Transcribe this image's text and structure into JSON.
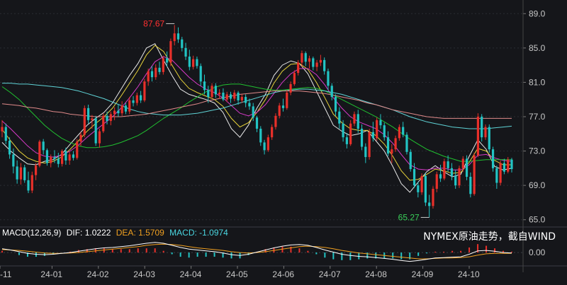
{
  "chart_data": {
    "type": "candlestick",
    "price_axis": {
      "ticks": [
        "89.0",
        "85.0",
        "81.0",
        "77.0",
        "73.0",
        "69.0",
        "65.0"
      ],
      "ylim": [
        64.4,
        89.6
      ]
    },
    "x_axis": {
      "labels": [
        "-11",
        "24-01",
        "24-02",
        "24-03",
        "24-04",
        "24-05",
        "24-06",
        "24-07",
        "24-08",
        "24-09",
        "24-10"
      ]
    },
    "annotations": {
      "high": "87.67",
      "low": "65.27"
    },
    "candles": [
      [
        75.3,
        76.6,
        74.6,
        75.8
      ],
      [
        75.8,
        76.2,
        73.8,
        74.2
      ],
      [
        74.2,
        74.6,
        72.1,
        72.6
      ],
      [
        72.6,
        73.3,
        70.4,
        71.2
      ],
      [
        71.2,
        71.9,
        69.2,
        69.7
      ],
      [
        69.7,
        71.6,
        69.1,
        71.1
      ],
      [
        71.1,
        71.4,
        69.3,
        69.6
      ],
      [
        69.6,
        70.6,
        68.1,
        68.4
      ],
      [
        68.4,
        70.6,
        68.1,
        70.2
      ],
      [
        70.2,
        71.6,
        69.6,
        71.3
      ],
      [
        71.3,
        74.3,
        71.1,
        74.1
      ],
      [
        74.1,
        74.4,
        72.6,
        73.1
      ],
      [
        73.1,
        73.3,
        71.3,
        71.6
      ],
      [
        71.6,
        72.6,
        71.1,
        72.3
      ],
      [
        72.3,
        73.1,
        71.6,
        72.1
      ],
      [
        72.1,
        72.8,
        71.1,
        71.5
      ],
      [
        71.5,
        73.2,
        71.2,
        73.0
      ],
      [
        73.0,
        73.4,
        71.4,
        71.9
      ],
      [
        71.9,
        72.9,
        71.4,
        72.6
      ],
      [
        72.6,
        73.0,
        71.9,
        72.2
      ],
      [
        72.2,
        74.4,
        72.0,
        74.1
      ],
      [
        74.1,
        75.2,
        73.6,
        74.9
      ],
      [
        74.9,
        78.3,
        74.6,
        78.0
      ],
      [
        78.0,
        78.4,
        76.2,
        76.6
      ],
      [
        76.6,
        77.2,
        75.6,
        76.8
      ],
      [
        76.8,
        77.1,
        73.6,
        73.9
      ],
      [
        73.9,
        75.6,
        73.4,
        75.3
      ],
      [
        75.3,
        77.4,
        75.1,
        77.1
      ],
      [
        77.1,
        77.6,
        76.1,
        76.5
      ],
      [
        76.5,
        77.6,
        76.0,
        77.3
      ],
      [
        77.3,
        78.1,
        76.6,
        77.7
      ],
      [
        77.7,
        78.4,
        77.0,
        77.4
      ],
      [
        77.4,
        78.8,
        77.1,
        78.3
      ],
      [
        78.3,
        78.6,
        77.3,
        77.6
      ],
      [
        77.6,
        79.3,
        77.3,
        78.9
      ],
      [
        78.9,
        79.4,
        78.2,
        78.6
      ],
      [
        78.6,
        79.8,
        78.3,
        79.5
      ],
      [
        79.5,
        80.0,
        78.6,
        78.9
      ],
      [
        78.9,
        81.4,
        78.7,
        81.1
      ],
      [
        81.1,
        82.6,
        80.6,
        82.3
      ],
      [
        82.3,
        82.9,
        81.1,
        81.6
      ],
      [
        81.6,
        83.1,
        81.3,
        82.7
      ],
      [
        82.7,
        83.4,
        81.9,
        82.2
      ],
      [
        82.2,
        84.1,
        81.9,
        83.8
      ],
      [
        83.8,
        84.6,
        82.8,
        83.3
      ],
      [
        83.3,
        86.1,
        82.9,
        85.8
      ],
      [
        85.8,
        87.67,
        85.3,
        86.7
      ],
      [
        86.7,
        87.4,
        85.6,
        86.0
      ],
      [
        86.0,
        86.3,
        84.6,
        85.0
      ],
      [
        85.0,
        85.6,
        83.6,
        84.0
      ],
      [
        84.0,
        84.8,
        82.4,
        82.8
      ],
      [
        82.8,
        84.1,
        82.5,
        83.7
      ],
      [
        83.7,
        84.0,
        82.6,
        82.9
      ],
      [
        82.9,
        83.2,
        80.6,
        81.1
      ],
      [
        81.1,
        81.9,
        79.6,
        80.1
      ],
      [
        80.1,
        80.6,
        78.6,
        79.3
      ],
      [
        79.3,
        80.9,
        79.1,
        80.6
      ],
      [
        80.6,
        80.9,
        79.2,
        79.6
      ],
      [
        79.6,
        80.2,
        79.1,
        79.8
      ],
      [
        79.8,
        80.3,
        78.8,
        79.0
      ],
      [
        79.0,
        79.9,
        78.7,
        79.6
      ],
      [
        79.6,
        79.9,
        78.6,
        79.1
      ],
      [
        79.1,
        80.1,
        78.8,
        79.8
      ],
      [
        79.8,
        80.0,
        78.4,
        78.9
      ],
      [
        78.9,
        79.6,
        78.6,
        79.3
      ],
      [
        79.3,
        79.6,
        78.1,
        78.6
      ],
      [
        78.6,
        79.1,
        77.8,
        78.2
      ],
      [
        78.2,
        78.6,
        76.5,
        76.9
      ],
      [
        76.9,
        77.1,
        75.2,
        75.6
      ],
      [
        75.6,
        75.9,
        73.6,
        74.0
      ],
      [
        74.0,
        74.3,
        72.6,
        73.1
      ],
      [
        73.1,
        74.9,
        72.9,
        74.6
      ],
      [
        74.6,
        76.1,
        74.3,
        75.8
      ],
      [
        75.8,
        77.4,
        75.5,
        77.1
      ],
      [
        77.1,
        78.6,
        76.8,
        78.3
      ],
      [
        78.3,
        79.1,
        77.6,
        78.0
      ],
      [
        78.0,
        80.1,
        77.8,
        79.8
      ],
      [
        79.8,
        81.1,
        79.5,
        80.8
      ],
      [
        80.8,
        82.4,
        80.6,
        82.1
      ],
      [
        82.1,
        83.6,
        81.8,
        83.3
      ],
      [
        83.3,
        84.7,
        82.8,
        84.4
      ],
      [
        84.4,
        84.6,
        82.9,
        83.4
      ],
      [
        83.4,
        84.1,
        82.6,
        83.8
      ],
      [
        83.8,
        84.0,
        82.4,
        82.8
      ],
      [
        82.8,
        83.6,
        82.3,
        83.3
      ],
      [
        83.3,
        84.2,
        82.9,
        83.6
      ],
      [
        83.6,
        83.9,
        81.9,
        82.3
      ],
      [
        82.3,
        82.6,
        80.1,
        80.6
      ],
      [
        80.6,
        80.9,
        78.9,
        79.3
      ],
      [
        79.3,
        79.6,
        77.1,
        77.6
      ],
      [
        77.6,
        78.1,
        75.6,
        76.2
      ],
      [
        76.2,
        76.6,
        74.1,
        74.6
      ],
      [
        74.6,
        75.1,
        73.3,
        73.8
      ],
      [
        73.8,
        76.6,
        73.6,
        76.2
      ],
      [
        76.2,
        77.6,
        75.9,
        77.3
      ],
      [
        77.3,
        77.8,
        75.1,
        75.6
      ],
      [
        75.6,
        76.1,
        73.1,
        73.5
      ],
      [
        73.5,
        73.9,
        71.6,
        72.3
      ],
      [
        72.3,
        75.6,
        72.0,
        75.2
      ],
      [
        75.2,
        76.4,
        74.1,
        74.5
      ],
      [
        74.5,
        76.9,
        74.2,
        76.6
      ],
      [
        76.6,
        77.3,
        75.6,
        76.0
      ],
      [
        76.0,
        76.3,
        74.2,
        74.6
      ],
      [
        74.6,
        75.3,
        72.4,
        72.7
      ],
      [
        72.7,
        73.8,
        71.6,
        73.2
      ],
      [
        73.2,
        74.8,
        72.9,
        74.5
      ],
      [
        74.5,
        76.1,
        74.2,
        75.8
      ],
      [
        75.8,
        76.4,
        74.6,
        74.9
      ],
      [
        74.9,
        75.2,
        72.6,
        72.9
      ],
      [
        72.9,
        73.2,
        70.6,
        70.9
      ],
      [
        70.9,
        71.6,
        68.7,
        69.0
      ],
      [
        69.0,
        69.4,
        67.6,
        68.2
      ],
      [
        68.2,
        70.4,
        67.9,
        70.1
      ],
      [
        70.1,
        70.4,
        66.6,
        67.0
      ],
      [
        67.0,
        67.9,
        65.27,
        66.6
      ],
      [
        66.6,
        68.9,
        66.3,
        68.6
      ],
      [
        68.6,
        70.6,
        68.2,
        70.3
      ],
      [
        70.3,
        71.4,
        69.4,
        69.8
      ],
      [
        69.8,
        72.1,
        69.6,
        71.8
      ],
      [
        71.8,
        72.5,
        70.6,
        71.0
      ],
      [
        71.0,
        71.6,
        69.6,
        70.1
      ],
      [
        70.1,
        70.8,
        68.6,
        69.0
      ],
      [
        69.0,
        71.3,
        68.7,
        71.0
      ],
      [
        71.0,
        72.4,
        70.6,
        72.1
      ],
      [
        72.1,
        72.5,
        69.6,
        70.0
      ],
      [
        70.0,
        70.5,
        67.6,
        68.0
      ],
      [
        68.0,
        72.8,
        67.8,
        72.5
      ],
      [
        72.5,
        77.4,
        72.3,
        77.0
      ],
      [
        77.0,
        77.3,
        74.1,
        74.6
      ],
      [
        74.6,
        76.1,
        74.3,
        75.8
      ],
      [
        75.8,
        76.1,
        72.8,
        73.2
      ],
      [
        73.2,
        73.5,
        70.6,
        71.0
      ],
      [
        71.0,
        71.3,
        68.6,
        69.3
      ],
      [
        69.3,
        71.9,
        69.0,
        71.6
      ],
      [
        71.6,
        72.1,
        70.3,
        70.6
      ],
      [
        70.6,
        72.3,
        70.4,
        72.0
      ],
      [
        72.0,
        72.2,
        70.5,
        70.9
      ]
    ],
    "moving_averages": [
      {
        "color": "#e8e8e8",
        "values": [
          74.0,
          73.0,
          72.2,
          71.5,
          71.4,
          71.8,
          72.0,
          72.6,
          73.8,
          74.9,
          76.0,
          76.8,
          77.5,
          78.6,
          80.2,
          81.8,
          83.2,
          85.0,
          85.5,
          83.6,
          81.8,
          80.2,
          79.6,
          79.3,
          79.0,
          78.6,
          77.5,
          75.6,
          74.6,
          76.0,
          78.0,
          79.6,
          81.8,
          83.0,
          83.5,
          83.2,
          82.0,
          80.0,
          78.0,
          76.0,
          75.3,
          74.8,
          75.0,
          75.4,
          74.2,
          73.0,
          71.2,
          69.2,
          68.2,
          69.4,
          70.6,
          71.3,
          70.6,
          70.0,
          70.3,
          72.4,
          74.3,
          73.2,
          71.2,
          70.8,
          71.0
        ]
      },
      {
        "color": "#e6d23a",
        "values": [
          75.5,
          74.2,
          73.0,
          72.2,
          71.8,
          71.6,
          71.8,
          72.3,
          73.2,
          74.2,
          75.3,
          76.2,
          77.0,
          78.0,
          79.4,
          80.9,
          82.4,
          84.2,
          85.3,
          84.6,
          83.0,
          81.4,
          80.3,
          79.8,
          79.4,
          79.0,
          78.2,
          76.8,
          75.8,
          76.3,
          77.5,
          79.0,
          80.9,
          82.3,
          83.1,
          83.2,
          82.5,
          81.0,
          79.2,
          77.3,
          76.3,
          75.6,
          75.4,
          75.4,
          74.8,
          73.8,
          72.4,
          70.7,
          69.6,
          69.7,
          70.3,
          70.9,
          70.7,
          70.4,
          70.5,
          71.7,
          73.3,
          73.0,
          71.9,
          71.4,
          71.4
        ]
      },
      {
        "color": "#d63ac8",
        "values": [
          76.5,
          75.6,
          74.6,
          73.6,
          72.8,
          72.4,
          72.3,
          72.5,
          73.0,
          73.7,
          74.6,
          75.4,
          76.2,
          77.0,
          78.0,
          79.2,
          80.5,
          82.0,
          83.4,
          84.0,
          83.6,
          82.6,
          81.6,
          80.8,
          80.2,
          79.8,
          79.2,
          78.3,
          77.4,
          77.1,
          77.5,
          78.4,
          79.7,
          81.0,
          82.0,
          82.6,
          82.6,
          81.9,
          80.7,
          79.2,
          78.0,
          77.0,
          76.4,
          76.0,
          75.6,
          74.9,
          73.9,
          72.6,
          71.4,
          70.9,
          70.8,
          71.0,
          71.0,
          70.8,
          70.8,
          71.4,
          72.5,
          72.6,
          72.2,
          71.9,
          71.8
        ]
      },
      {
        "color": "#20c030",
        "values": [
          80.5,
          79.8,
          79.0,
          78.0,
          77.0,
          76.0,
          75.2,
          74.5,
          74.0,
          73.6,
          73.4,
          73.4,
          73.5,
          73.7,
          74.0,
          74.4,
          74.8,
          75.4,
          76.1,
          76.8,
          77.4,
          78.0,
          78.7,
          79.3,
          79.9,
          80.4,
          80.7,
          80.8,
          80.8,
          80.6,
          80.4,
          80.2,
          80.1,
          80.1,
          80.2,
          80.3,
          80.4,
          80.3,
          80.0,
          79.5,
          79.0,
          78.5,
          78.0,
          77.5,
          77.0,
          76.4,
          75.8,
          75.1,
          74.4,
          73.8,
          73.2,
          72.8,
          72.4,
          72.1,
          71.8,
          71.8,
          71.9,
          72.0,
          72.0,
          72.0,
          72.0
        ]
      },
      {
        "color": "#5fd3d6",
        "values": [
          80.9,
          80.9,
          80.8,
          80.8,
          80.7,
          80.6,
          80.5,
          80.4,
          80.2,
          80.0,
          79.7,
          79.4,
          79.1,
          78.7,
          78.3,
          77.9,
          77.6,
          77.4,
          77.3,
          77.2,
          77.2,
          77.2,
          77.3,
          77.4,
          77.6,
          77.8,
          78.0,
          78.3,
          78.6,
          78.9,
          79.2,
          79.5,
          79.8,
          80.0,
          80.1,
          80.2,
          80.2,
          80.1,
          80.0,
          79.8,
          79.6,
          79.3,
          79.0,
          78.7,
          78.4,
          78.1,
          77.8,
          77.4,
          77.0,
          76.7,
          76.4,
          76.2,
          76.0,
          75.8,
          75.7,
          75.6,
          75.6,
          75.6,
          75.7,
          75.8,
          75.9
        ]
      },
      {
        "color": "#e08a8a",
        "values": [
          78.5,
          78.4,
          78.3,
          78.1,
          78.0,
          77.8,
          77.6,
          77.5,
          77.3,
          77.2,
          77.1,
          77.0,
          77.0,
          77.0,
          77.0,
          77.1,
          77.2,
          77.3,
          77.5,
          77.7,
          77.9,
          78.1,
          78.3,
          78.5,
          78.8,
          79.0,
          79.2,
          79.4,
          79.6,
          79.7,
          79.8,
          79.9,
          80.0,
          80.0,
          80.0,
          80.0,
          79.9,
          79.8,
          79.7,
          79.5,
          79.3,
          79.1,
          78.9,
          78.6,
          78.4,
          78.1,
          77.8,
          77.6,
          77.4,
          77.2,
          77.0,
          76.9,
          76.8,
          76.8,
          76.8,
          76.8,
          76.8,
          76.8,
          76.8,
          76.8,
          76.8
        ]
      }
    ],
    "macd": {
      "legend": {
        "params": "MACD(12,26,9)",
        "dif": "DIF: 1.0222",
        "dea": "DEA: 1.5709",
        "macd": "MACD: -1.0974"
      },
      "ticks": [
        "0.00"
      ],
      "ylim": [
        -2.5,
        3.2
      ],
      "dif": [
        0.9,
        0.6,
        0.2,
        -0.2,
        -0.4,
        -0.5,
        -0.4,
        -0.2,
        0.0,
        0.3,
        0.6,
        0.9,
        1.1,
        1.2,
        1.4,
        1.6,
        1.9,
        2.2,
        2.4,
        2.2,
        1.7,
        1.2,
        0.8,
        0.6,
        0.4,
        0.2,
        -0.1,
        -0.5,
        -0.7,
        -0.4,
        0.1,
        0.6,
        1.1,
        1.5,
        1.8,
        1.9,
        1.7,
        1.2,
        0.6,
        0.1,
        -0.4,
        -0.7,
        -0.9,
        -1.0,
        -1.2,
        -1.4,
        -1.6,
        -1.9,
        -2.1,
        -1.9,
        -1.6,
        -1.3,
        -1.2,
        -1.1,
        -1.0,
        -0.4,
        0.4,
        0.5,
        0.3,
        0.0,
        -0.1
      ],
      "dea": [
        0.7,
        0.6,
        0.5,
        0.3,
        0.1,
        -0.1,
        -0.2,
        -0.2,
        -0.1,
        0.0,
        0.2,
        0.4,
        0.6,
        0.8,
        1.0,
        1.2,
        1.4,
        1.7,
        1.9,
        2.0,
        1.9,
        1.7,
        1.4,
        1.1,
        0.9,
        0.7,
        0.5,
        0.2,
        0.0,
        -0.1,
        0.0,
        0.2,
        0.5,
        0.8,
        1.1,
        1.4,
        1.5,
        1.4,
        1.2,
        0.9,
        0.5,
        0.2,
        -0.1,
        -0.3,
        -0.5,
        -0.7,
        -0.9,
        -1.1,
        -1.3,
        -1.5,
        -1.5,
        -1.4,
        -1.3,
        -1.3,
        -1.2,
        -1.0,
        -0.6,
        -0.3,
        -0.2,
        -0.2,
        -0.2
      ],
      "hist": [
        0.4,
        0.0,
        -0.6,
        -1.0,
        -1.0,
        -0.8,
        -0.4,
        0.0,
        0.2,
        0.6,
        0.8,
        1.0,
        1.0,
        0.8,
        0.8,
        0.8,
        1.0,
        1.0,
        1.0,
        0.4,
        -0.4,
        -1.0,
        -1.2,
        -1.0,
        -1.0,
        -1.0,
        -1.2,
        -1.4,
        -1.4,
        -0.6,
        0.2,
        0.8,
        1.2,
        1.4,
        1.4,
        1.0,
        0.4,
        -0.4,
        -1.2,
        -1.6,
        -1.8,
        -1.8,
        -1.6,
        -1.4,
        -1.4,
        -1.4,
        -1.4,
        -1.6,
        -1.6,
        -0.8,
        -0.2,
        0.2,
        0.2,
        0.4,
        0.4,
        1.2,
        2.0,
        1.6,
        1.0,
        0.4,
        0.2
      ]
    }
  },
  "watermark": "NYMEX原油走势，截自WIND",
  "colors": {
    "up": "#e8302a",
    "down": "#22c4c4",
    "background": "#15161a",
    "grid": "#2a2c33",
    "axis_text": "#c8c8c8",
    "high_label": "#ff3030",
    "low_label": "#3ad05a",
    "dif": "#ffffff",
    "dea": "#f0a020",
    "macd_text": "#4ad6e0",
    "params_text": "#ffffff"
  }
}
